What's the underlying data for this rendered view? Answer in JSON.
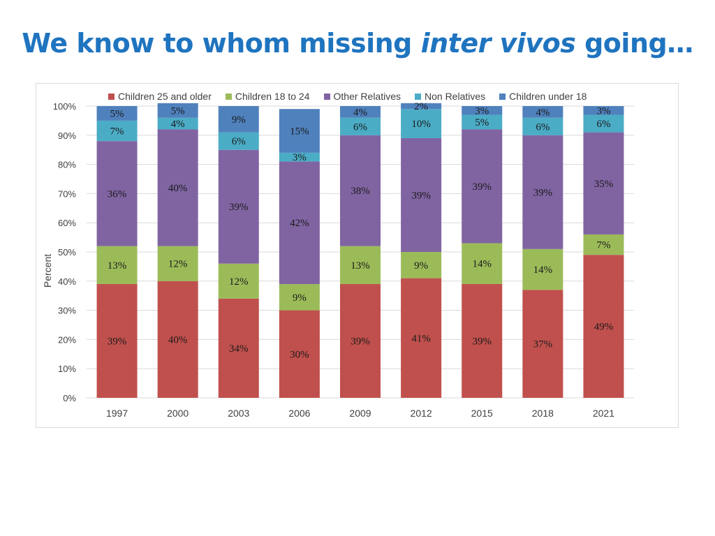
{
  "slide": {
    "title_pre": "We know to whom missing ",
    "title_em": "inter vivos",
    "title_post": " going…"
  },
  "chart_data": {
    "type": "bar",
    "stacked": true,
    "categories": [
      "1997",
      "2000",
      "2003",
      "2006",
      "2009",
      "2012",
      "2015",
      "2018",
      "2021"
    ],
    "series": [
      {
        "name": "Children 25 and older",
        "color": "#c0504d",
        "values": [
          39,
          40,
          34,
          30,
          39,
          41,
          39,
          37,
          49
        ],
        "labels": [
          "39%",
          "40%",
          "34%",
          "30%",
          "39%",
          "41%",
          "39%",
          "37%",
          "49%"
        ]
      },
      {
        "name": "Children 18 to 24",
        "color": "#9bbb59",
        "values": [
          13,
          12,
          12,
          9,
          13,
          9,
          14,
          14,
          7
        ],
        "labels": [
          "13%",
          "12%",
          "12%",
          "9%",
          "13%",
          "9%",
          "14%",
          "14%",
          "7%"
        ]
      },
      {
        "name": "Other Relatives",
        "color": "#8064a2",
        "values": [
          36,
          40,
          39,
          42,
          38,
          39,
          39,
          39,
          35
        ],
        "labels": [
          "36%",
          "40%",
          "39%",
          "42%",
          "38%",
          "39%",
          "39%",
          "39%",
          "35%"
        ]
      },
      {
        "name": "Non Relatives",
        "color": "#4bacc6",
        "values": [
          7,
          4,
          6,
          3,
          6,
          10,
          5,
          6,
          6
        ],
        "labels": [
          "7%",
          "4%",
          "6%",
          "3%",
          "6%",
          "10%",
          "5%",
          "6%",
          "6%"
        ]
      },
      {
        "name": "Children under 18",
        "color": "#4f81bd",
        "values": [
          5,
          5,
          9,
          15,
          4,
          2,
          3,
          4,
          3
        ],
        "labels": [
          "5%",
          "5%",
          "9%",
          "15%",
          "4%",
          "2%",
          "3%",
          "4%",
          "3%"
        ]
      }
    ],
    "yticks": [
      "0%",
      "10%",
      "20%",
      "30%",
      "40%",
      "50%",
      "60%",
      "70%",
      "80%",
      "90%",
      "100%"
    ],
    "ylabel": "Percent",
    "xlabel": "",
    "ylim": [
      0,
      100
    ],
    "grid": true,
    "legend_position": "top"
  }
}
